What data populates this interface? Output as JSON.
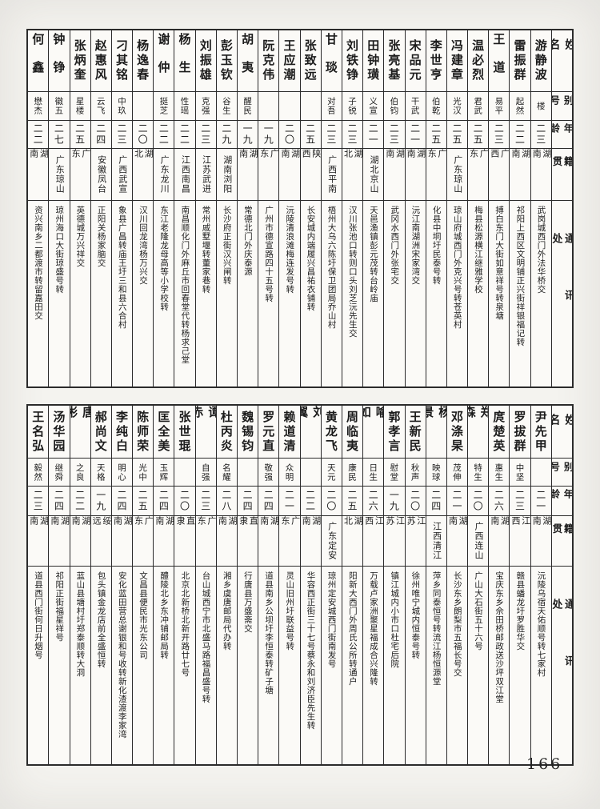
{
  "page": {
    "number": "166"
  },
  "colors": {
    "paper": "#f4f3ef",
    "sheet": "#fbfaf7",
    "ink": "#1c1c1c",
    "border": "#2b2b2b"
  },
  "header_labels": {
    "name": "姓名",
    "alias": "别号",
    "age": "年龄",
    "origin": "籍贯",
    "address": "通讯处"
  },
  "tables": [
    {
      "people": [
        {
          "name": "游静波",
          "alias": "楼",
          "age": "二三",
          "origin": "湖南",
          "address": "武岗城西门外法华桥交"
        },
        {
          "name": "雷振群",
          "alias": "起然",
          "age": "二二",
          "origin": "湖南",
          "address": "祁阳上西区文明铺正兴街祥银福记转"
        },
        {
          "name": "王道",
          "alias": "易平",
          "age": "二三",
          "origin": "广西",
          "address": "搏白东门大街如意祥号转泉塘"
        },
        {
          "name": "温必烈",
          "alias": "君武",
          "age": "二五",
          "origin": "广东",
          "address": "梅县松源横江继雅学校"
        },
        {
          "name": "冯建章",
          "alias": "光汉",
          "age": "二五",
          "origin": "广东琼山",
          "address": "琼山府城西门外克兴号转苍英村"
        },
        {
          "name": "李世亨",
          "alias": "伯乾",
          "age": "二五",
          "origin": "广东",
          "address": "化县中垌圩民泰号转"
        },
        {
          "name": "宋品元",
          "alias": "干武",
          "age": "二一",
          "origin": "湖南",
          "address": "沅江南湖洲宋家湾交"
        },
        {
          "name": "张亮基",
          "alias": "伯钧",
          "age": "二三",
          "origin": "湖南",
          "address": "武冈水西门外张宅交"
        },
        {
          "name": "田钟璜",
          "alias": "义宣",
          "age": "二一",
          "origin": "湖北京山",
          "address": "天邑渔镇彭元茂转台岭庙"
        },
        {
          "name": "刘铁铮",
          "alias": "子锐",
          "age": "二三",
          "origin": "湖北",
          "address": "汉川张池口转则口头刘芝沅先生交"
        },
        {
          "name": "甘琰",
          "alias": "对吾",
          "age": "二三",
          "origin": "广西平南",
          "address": "梧州大乌六陈圩保卫团局乔山村"
        },
        {
          "name": "张致远",
          "alias": "",
          "age": "二五",
          "origin": "陕西",
          "address": "长安城内端履兴昌祐衣铺转"
        },
        {
          "name": "王应潮",
          "alias": "",
          "age": "二〇",
          "origin": "湖南",
          "address": "沅陵清浪滩梅连发号转"
        },
        {
          "name": "阮克伟",
          "alias": "",
          "age": "一九",
          "origin": "广东",
          "address": "广州市德宣路四十五号转"
        },
        {
          "name": "胡夷",
          "alias": "醒民",
          "age": "一九",
          "origin": "湖南",
          "address": "常德北门外庆泰源"
        },
        {
          "name": "彭玉钦",
          "alias": "谷生",
          "age": "二九",
          "origin": "湖南浏阳",
          "address": "长沙府正街汉兴闸转"
        },
        {
          "name": "刘振雄",
          "alias": "克强",
          "age": "二三",
          "origin": "江苏武进",
          "address": "常州戚墅堰转董家巷转"
        },
        {
          "name": "杨生",
          "alias": "性瑶",
          "age": "二二",
          "origin": "江西南昌",
          "address": "南昌顺化门外麻丘市回春堂代转杨求己堂"
        },
        {
          "name": "谢仲",
          "alias": "挺芝",
          "age": "二二",
          "origin": "广东龙川",
          "address": "东江老隆龙母高等小学校转"
        },
        {
          "name": "杨逸春",
          "alias": "",
          "age": "二〇",
          "origin": "湖北",
          "address": "汉川回龙湾杨万兴交"
        },
        {
          "name": "刁其铭",
          "alias": "中玖",
          "age": "二三",
          "origin": "广西武宣",
          "address": "象县广昌转庙王圩三和县六合村"
        },
        {
          "name": "赵惠风",
          "alias": "云飞",
          "age": "二四",
          "origin": "安徽凤台",
          "address": "正阳关杨家脑交"
        },
        {
          "name": "张炳奎",
          "alias": "星楼",
          "age": "二五",
          "origin": "广东",
          "address": "英德城万兴祥交"
        },
        {
          "name": "钟铮",
          "alias": "徽五",
          "age": "二七",
          "origin": "广东琼山",
          "address": "琼州海口大街琼盛号转"
        },
        {
          "name": "何鑫",
          "alias": "懋杰",
          "age": "二二",
          "origin": "湖南",
          "address": "资兴南乡二都渡市转留嘉田交"
        }
      ]
    },
    {
      "people": [
        {
          "name": "尹先甲",
          "alias": "",
          "age": "二一",
          "origin": "湖南",
          "address": "沅陵乌宿天佑顺号转七家村"
        },
        {
          "name": "罗拔群",
          "alias": "中坚",
          "age": "二三",
          "origin": "江西",
          "address": "赣县蟠龙圩罗胜华交"
        },
        {
          "name": "庹楚英",
          "alias": "惠生",
          "age": "二六",
          "origin": "湖南",
          "address": "宝庆东乡佘田桥邮政送沙坪双江堂"
        },
        {
          "name": "郑森",
          "alias": "特生",
          "age": "二〇",
          "origin": "广西连山",
          "address": "广山大石街五十六号"
        },
        {
          "name": "邓涤杲",
          "alias": "茂伸",
          "age": "二一",
          "origin": "湖南",
          "address": "长沙东乡朗梨市五福长号交"
        },
        {
          "name": "杨景",
          "alias": "映球",
          "age": "二四",
          "origin": "江西清江",
          "address": "萍乡同泰恒号转流江杨恒源堂"
        },
        {
          "name": "王新民",
          "alias": "秋声",
          "age": "二〇",
          "origin": "江苏",
          "address": "徐州唯宁城内恒泰号转"
        },
        {
          "name": "郭孝言",
          "alias": "慰堂",
          "age": "一九",
          "origin": "江苏",
          "address": "镇江城内小市口杜宅后院"
        },
        {
          "name": "喻如",
          "alias": "日生",
          "age": "二六",
          "origin": "江西",
          "address": "万载卢家洲聚星福成合兴隆转"
        },
        {
          "name": "周临夷",
          "alias": "康民",
          "age": "二五",
          "origin": "湖北",
          "address": "阳新大西门外周氏公所转通户"
        },
        {
          "name": "黄龙飞",
          "alias": "天元",
          "age": "二〇",
          "origin": "广东定安",
          "address": "琼州定安城西门街南发号"
        },
        {
          "name": "刘翼",
          "alias": "",
          "age": "二二",
          "origin": "湖南",
          "address": "华容西正街三十七号蔡永和刘济臣先生转"
        },
        {
          "name": "赖道清",
          "alias": "众明",
          "age": "二一",
          "origin": "广东",
          "address": "灵山旧州圩联益号转"
        },
        {
          "name": "罗元直",
          "alias": "敬强",
          "age": "二四",
          "origin": "湖南",
          "address": "道县南乡公坝圩李恒泰转矿子塘"
        },
        {
          "name": "魏锡钧",
          "alias": "",
          "age": "二四",
          "origin": "直隶",
          "address": "行唐县万盛斋交"
        },
        {
          "name": "杜丙炎",
          "alias": "名耀",
          "age": "二八",
          "origin": "湖南",
          "address": "湘乡虞唐邮局代办转"
        },
        {
          "name": "谭赤",
          "alias": "自强",
          "age": "二三",
          "origin": "广东",
          "address": "台山城西宁市北盛马路福昌盛号转"
        },
        {
          "name": "张世琨",
          "alias": "",
          "age": "二〇",
          "origin": "直隶",
          "address": "北京北新桥北新开路廿七号"
        },
        {
          "name": "匡全美",
          "alias": "玉辉",
          "age": "二四",
          "origin": "湖南",
          "address": "醴陵北乡东冲铺邮局转"
        },
        {
          "name": "陈师荣",
          "alias": "光中",
          "age": "二五",
          "origin": "广东",
          "address": "文昌县便民市光东公司"
        },
        {
          "name": "李纯白",
          "alias": "明心",
          "age": "二四",
          "origin": "湖南",
          "address": "安化蓝田营总谢银和号收转新化渣渡李家湾"
        },
        {
          "name": "郝尚文",
          "alias": "天格",
          "age": "一九",
          "origin": "绥远",
          "address": "包头镇金龙店前全盛恒转"
        },
        {
          "name": "唐彬",
          "alias": "之良",
          "age": "二二",
          "origin": "湖南",
          "address": "蓝山县塘村圩郑泰顺转大洞"
        },
        {
          "name": "汤华园",
          "alias": "继舜",
          "age": "二四",
          "origin": "湖南",
          "address": "祁阳正街福星祥号"
        },
        {
          "name": "王名弘",
          "alias": "毅然",
          "age": "二三",
          "origin": "湖南",
          "address": "道县西门街何日升烟号"
        }
      ]
    }
  ]
}
